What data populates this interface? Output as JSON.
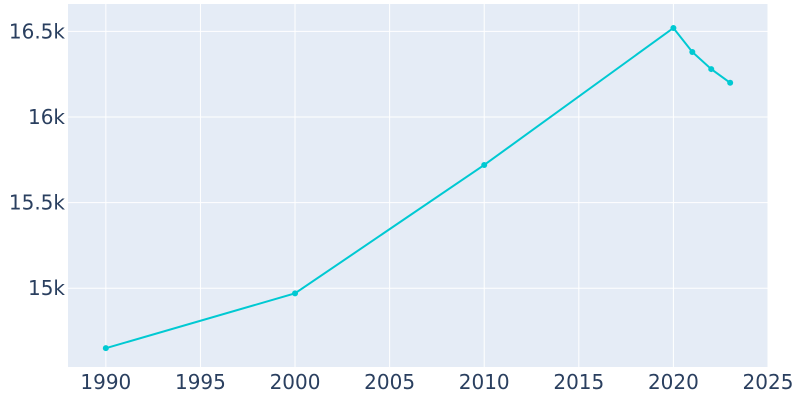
{
  "chart_data": {
    "type": "line",
    "title": "",
    "xlabel": "",
    "ylabel": "",
    "xlim": [
      1988,
      2025
    ],
    "ylim": [
      14540,
      16660
    ],
    "grid": true,
    "legend": "none",
    "x_ticks": [
      1990,
      1995,
      2000,
      2005,
      2010,
      2015,
      2020,
      2025
    ],
    "x_tick_labels": [
      "1990",
      "1995",
      "2000",
      "2005",
      "2010",
      "2015",
      "2020",
      "2025"
    ],
    "y_ticks": [
      15000,
      15500,
      16000,
      16500
    ],
    "y_tick_labels": [
      "15k",
      "15.5k",
      "16k",
      "16.5k"
    ],
    "series": [
      {
        "color": "#00c9d2",
        "x": [
          1990,
          2000,
          2010,
          2020,
          2021,
          2022,
          2023
        ],
        "y": [
          14650,
          14970,
          15720,
          16520,
          16380,
          16280,
          16200
        ]
      }
    ]
  }
}
